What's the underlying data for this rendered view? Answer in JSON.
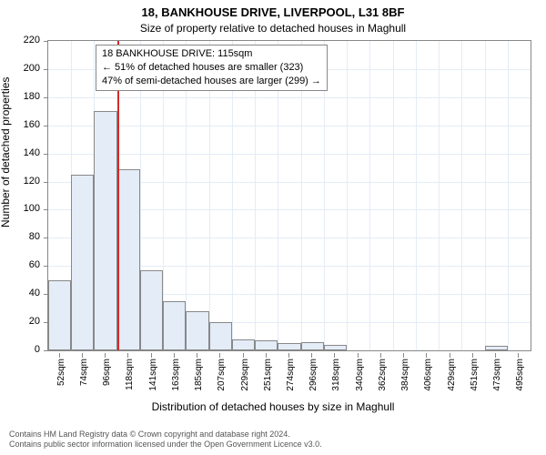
{
  "title": "18, BANKHOUSE DRIVE, LIVERPOOL, L31 8BF",
  "subtitle": "Size of property relative to detached houses in Maghull",
  "ylabel": "Number of detached properties",
  "xlabel": "Distribution of detached houses by size in Maghull",
  "chart": {
    "type": "histogram",
    "background_color": "#ffffff",
    "grid_color": "#e4ecf7",
    "bar_fill": "#e4ecf7",
    "bar_border": "#888888",
    "marker_color": "#d42a2a",
    "ylim": [
      0,
      220
    ],
    "ytick_step": 20,
    "x_categories_sqm": [
      52,
      74,
      96,
      118,
      141,
      163,
      185,
      207,
      229,
      251,
      274,
      296,
      318,
      340,
      362,
      384,
      406,
      429,
      451,
      473,
      495
    ],
    "values": [
      50,
      125,
      170,
      129,
      57,
      35,
      28,
      20,
      8,
      7,
      5,
      6,
      4,
      0,
      0,
      0,
      0,
      0,
      0,
      3,
      0
    ],
    "marker_after_index": 2,
    "annotation": {
      "lines": [
        "18 BANKHOUSE DRIVE: 115sqm",
        "← 51% of detached houses are smaller (323)",
        "47% of semi-detached houses are larger (299) →"
      ]
    },
    "label_fontsize": 12,
    "title_fontsize": 13,
    "tick_fontsize": 11
  },
  "footer": {
    "line1": "Contains HM Land Registry data © Crown copyright and database right 2024.",
    "line2": "Contains public sector information licensed under the Open Government Licence v3.0."
  }
}
